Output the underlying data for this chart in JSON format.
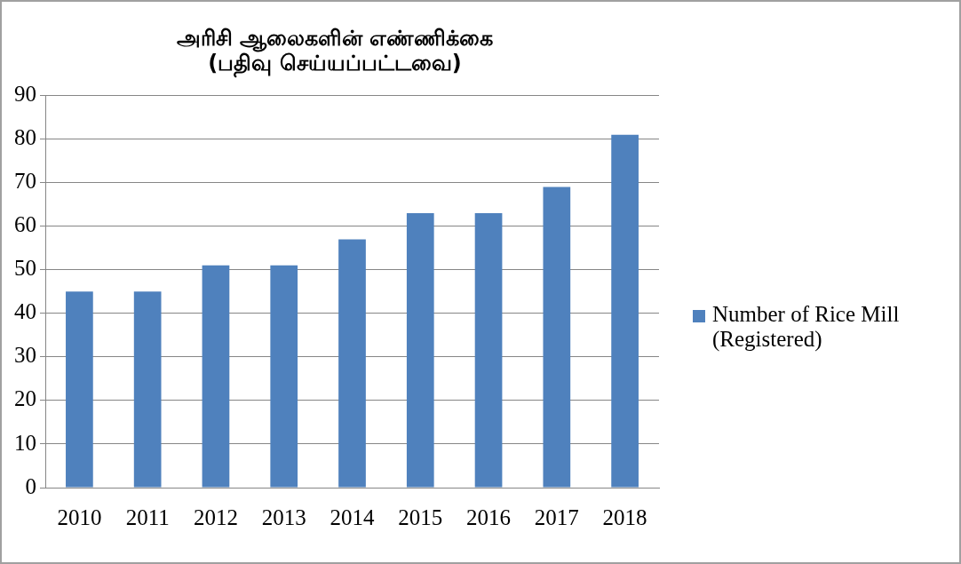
{
  "chart_data": {
    "type": "bar",
    "title": "அரிசி ஆலைகளின் எண்ணிக்கை\n(பதிவு செய்யப்பட்டவை)",
    "categories": [
      "2010",
      "2011",
      "2012",
      "2013",
      "2014",
      "2015",
      "2016",
      "2017",
      "2018"
    ],
    "series": [
      {
        "name": "Number of Rice Mill (Registered)",
        "color": "#4f81bd",
        "values": [
          45,
          45,
          51,
          51,
          57,
          63,
          63,
          69,
          81
        ]
      }
    ],
    "ylim": [
      0,
      90
    ],
    "yticks": [
      0,
      10,
      20,
      30,
      40,
      50,
      60,
      70,
      80,
      90
    ],
    "grid": "y",
    "legend": "right"
  }
}
